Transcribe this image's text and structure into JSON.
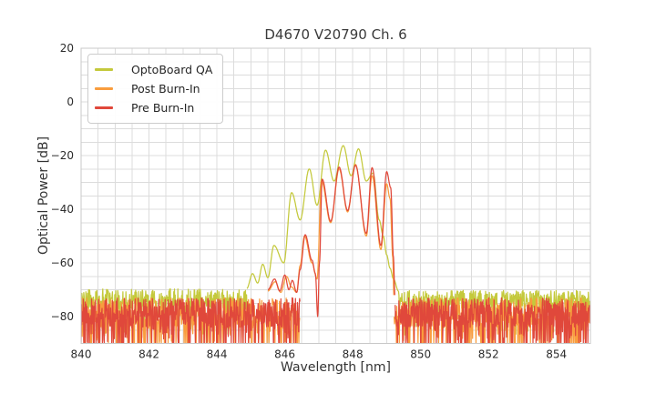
{
  "chart_data": {
    "type": "line",
    "title": "D4670 V20790 Ch. 6",
    "xlabel": "Wavelength [nm]",
    "ylabel": "Optical Power [dB]",
    "xlim": [
      840,
      855
    ],
    "ylim": [
      -90,
      20
    ],
    "xticks": [
      840,
      842,
      844,
      846,
      848,
      850,
      852,
      854
    ],
    "yticks": [
      20,
      0,
      -20,
      -40,
      -60,
      -80
    ],
    "x_minor_step": 0.5,
    "y_minor_step": 5,
    "grid": true,
    "grid_color": "#dcdcdc",
    "spine_color": "#c8c8c8",
    "background": "#ffffff",
    "legend_position": "upper-left",
    "series": [
      {
        "name": "OptoBoard QA",
        "color": "#c4c93c",
        "paths": [
          {
            "kind": "noise",
            "from": 840.0,
            "to": 844.9,
            "mean": -73.5,
            "amp": 3.8,
            "spike": 10,
            "seed": 3
          },
          {
            "kind": "envelope",
            "points": [
              [
                844.88,
                -69.5
              ],
              [
                845.05,
                -64
              ],
              [
                845.2,
                -67.5
              ],
              [
                845.35,
                -60.5
              ],
              [
                845.5,
                -65.5
              ],
              [
                845.68,
                -53.5
              ],
              [
                845.97,
                -60
              ],
              [
                846.2,
                -33.8
              ],
              [
                846.45,
                -44
              ],
              [
                846.72,
                -25
              ],
              [
                846.95,
                -38.5
              ],
              [
                847.2,
                -18
              ],
              [
                847.45,
                -29.5
              ],
              [
                847.72,
                -16.3
              ],
              [
                847.95,
                -27.5
              ],
              [
                848.17,
                -17.5
              ],
              [
                848.4,
                -29.5
              ],
              [
                848.6,
                -26.5
              ],
              [
                848.78,
                -44
              ],
              [
                848.9,
                -50
              ],
              [
                849.0,
                -57
              ],
              [
                849.1,
                -62
              ],
              [
                849.2,
                -66
              ],
              [
                849.35,
                -70.5
              ]
            ]
          },
          {
            "kind": "noise",
            "from": 849.35,
            "to": 855.0,
            "mean": -74.0,
            "amp": 3.8,
            "spike": 10,
            "seed": 4
          }
        ]
      },
      {
        "name": "Post Burn-In",
        "color": "#f99d3e",
        "paths": [
          {
            "kind": "noise",
            "from": 840.0,
            "to": 846.45,
            "mean": -78.5,
            "amp": 5.5,
            "spike": 22,
            "seed": 7
          },
          {
            "kind": "envelope",
            "points": [
              [
                845.5,
                -70.5
              ],
              [
                845.72,
                -67
              ],
              [
                845.88,
                -71
              ],
              [
                846.05,
                -65
              ],
              [
                846.2,
                -69
              ],
              [
                846.35,
                -71
              ],
              [
                846.45,
                -61
              ],
              [
                846.58,
                -50
              ],
              [
                846.8,
                -60
              ],
              [
                846.95,
                -66
              ],
              [
                847.08,
                -29.5
              ],
              [
                847.35,
                -45
              ],
              [
                847.6,
                -25
              ],
              [
                847.85,
                -41
              ],
              [
                848.08,
                -23.3
              ],
              [
                848.4,
                -50
              ],
              [
                848.57,
                -27.5
              ],
              [
                848.83,
                -55
              ],
              [
                849.0,
                -30.5
              ],
              [
                849.1,
                -36
              ],
              [
                849.18,
                -58
              ],
              [
                849.21,
                -72
              ]
            ]
          },
          {
            "kind": "noise",
            "from": 849.22,
            "to": 855.0,
            "mean": -78.5,
            "amp": 5.5,
            "spike": 22,
            "seed": 8
          }
        ]
      },
      {
        "name": "Pre Burn-In",
        "color": "#e0483b",
        "paths": [
          {
            "kind": "noise",
            "from": 840.0,
            "to": 846.45,
            "mean": -78.5,
            "amp": 5.5,
            "spike": 22,
            "seed": 11
          },
          {
            "kind": "envelope",
            "points": [
              [
                845.5,
                -70
              ],
              [
                845.7,
                -66
              ],
              [
                845.85,
                -70.5
              ],
              [
                846.0,
                -64.5
              ],
              [
                846.12,
                -70
              ],
              [
                846.22,
                -66.5
              ],
              [
                846.35,
                -71
              ],
              [
                846.45,
                -62.5
              ],
              [
                846.6,
                -49.5
              ],
              [
                846.8,
                -59
              ],
              [
                846.9,
                -64
              ],
              [
                846.97,
                -80
              ],
              [
                847.02,
                -60
              ],
              [
                847.1,
                -28.8
              ],
              [
                847.35,
                -44.5
              ],
              [
                847.6,
                -24.3
              ],
              [
                847.85,
                -40.5
              ],
              [
                848.08,
                -23.6
              ],
              [
                848.4,
                -49
              ],
              [
                848.57,
                -24.5
              ],
              [
                848.83,
                -53.5
              ],
              [
                849.0,
                -26
              ],
              [
                849.12,
                -32
              ],
              [
                849.2,
                -58
              ],
              [
                849.24,
                -72
              ]
            ]
          },
          {
            "kind": "noise",
            "from": 849.25,
            "to": 855.0,
            "mean": -78.5,
            "amp": 5.5,
            "spike": 22,
            "seed": 12
          }
        ]
      }
    ]
  }
}
